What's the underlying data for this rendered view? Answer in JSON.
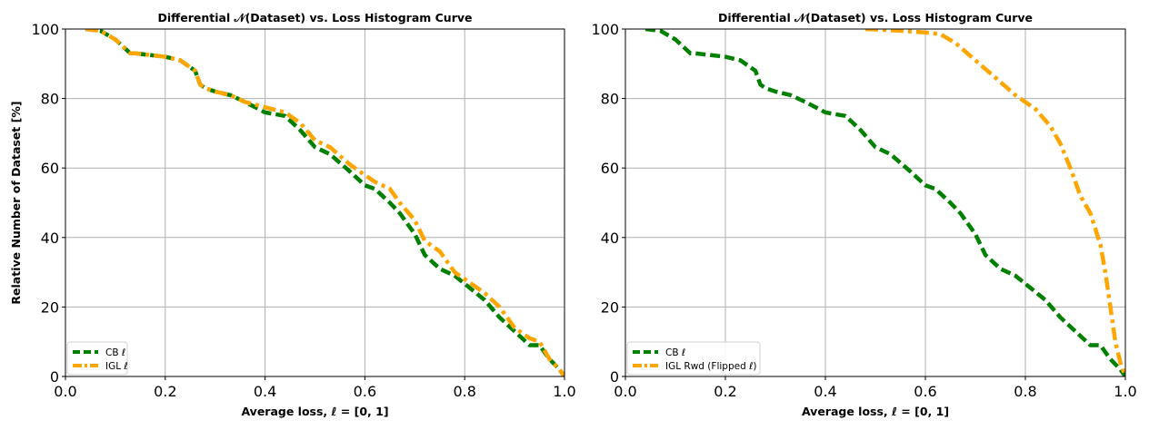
{
  "chart_data": [
    {
      "type": "line",
      "title": "Differential 𝒩(Dataset) vs. Loss Histogram Curve",
      "xlabel": "Average loss,  ℓ = [0, 1]",
      "ylabel": "Relative Number of Dataset [%]",
      "xlim": [
        0,
        1
      ],
      "ylim": [
        0,
        100
      ],
      "xticks": [
        "0.0",
        "0.2",
        "0.4",
        "0.6",
        "0.8",
        "1.0"
      ],
      "yticks": [
        "0",
        "20",
        "40",
        "60",
        "80",
        "100"
      ],
      "grid": true,
      "legend_position": "lower-left",
      "series": [
        {
          "name": "CB ℓ",
          "color": "#008000",
          "style": "dashed",
          "x": [
            0.04,
            0.07,
            0.1,
            0.13,
            0.14,
            0.2,
            0.23,
            0.26,
            0.27,
            0.28,
            0.3,
            0.33,
            0.36,
            0.4,
            0.44,
            0.47,
            0.5,
            0.53,
            0.57,
            0.6,
            0.62,
            0.65,
            0.67,
            0.7,
            0.72,
            0.75,
            0.78,
            0.81,
            0.84,
            0.87,
            0.9,
            0.93,
            0.95,
            0.97,
            0.99,
            1.0
          ],
          "y": [
            100,
            99.5,
            97,
            93,
            93,
            92,
            91,
            88,
            84,
            83,
            82,
            81,
            79,
            76,
            75,
            71,
            66,
            64,
            59,
            55,
            54,
            50,
            47,
            41,
            35,
            31,
            29,
            25.5,
            22,
            17,
            13,
            9,
            9,
            5,
            2,
            0
          ]
        },
        {
          "name": "IGL ℓ",
          "color": "#FFA500",
          "style": "dashdot",
          "x": [
            0.04,
            0.07,
            0.1,
            0.13,
            0.14,
            0.2,
            0.23,
            0.26,
            0.27,
            0.28,
            0.3,
            0.33,
            0.36,
            0.4,
            0.44,
            0.47,
            0.5,
            0.53,
            0.57,
            0.6,
            0.62,
            0.65,
            0.67,
            0.7,
            0.72,
            0.75,
            0.78,
            0.81,
            0.84,
            0.87,
            0.9,
            0.93,
            0.95,
            0.97,
            0.99,
            1.0
          ],
          "y": [
            100,
            99.5,
            97,
            93,
            93,
            92,
            91,
            88,
            84,
            83,
            82,
            81,
            79,
            77.5,
            76,
            73,
            68,
            66,
            61,
            58,
            56,
            54,
            50,
            45,
            39,
            36,
            30,
            27,
            24,
            20,
            14,
            11,
            10,
            5,
            2,
            0
          ]
        }
      ]
    },
    {
      "type": "line",
      "title": "Differential 𝒩(Dataset) vs. Loss Histogram Curve",
      "xlabel": "Average loss,  ℓ = [0, 1]",
      "ylabel": "",
      "xlim": [
        0,
        1
      ],
      "ylim": [
        0,
        100
      ],
      "xticks": [
        "0.0",
        "0.2",
        "0.4",
        "0.6",
        "0.8",
        "1.0"
      ],
      "yticks": [
        "0",
        "20",
        "40",
        "60",
        "80",
        "100"
      ],
      "grid": true,
      "legend_position": "lower-left",
      "series": [
        {
          "name": "CB ℓ",
          "color": "#008000",
          "style": "dashed",
          "x": [
            0.04,
            0.07,
            0.1,
            0.13,
            0.14,
            0.2,
            0.23,
            0.26,
            0.27,
            0.28,
            0.3,
            0.33,
            0.36,
            0.4,
            0.44,
            0.47,
            0.5,
            0.53,
            0.57,
            0.6,
            0.62,
            0.65,
            0.67,
            0.7,
            0.72,
            0.75,
            0.78,
            0.81,
            0.84,
            0.87,
            0.9,
            0.93,
            0.95,
            0.97,
            0.99,
            1.0
          ],
          "y": [
            100,
            99.5,
            97,
            93,
            93,
            92,
            91,
            88,
            84,
            83,
            82,
            81,
            79,
            76,
            75,
            71,
            66,
            64,
            59,
            55,
            54,
            50,
            47,
            41,
            35,
            31,
            29,
            25.5,
            22,
            17,
            13,
            9,
            9,
            5,
            2,
            0
          ]
        },
        {
          "name": "IGL Rwd (Flipped ℓ)",
          "color": "#FFA500",
          "style": "dashdot",
          "x": [
            0.48,
            0.55,
            0.6,
            0.63,
            0.66,
            0.7,
            0.74,
            0.78,
            0.82,
            0.85,
            0.87,
            0.89,
            0.91,
            0.93,
            0.95,
            0.96,
            0.97,
            0.98,
            0.99,
            1.0
          ],
          "y": [
            100,
            99.5,
            99,
            98.5,
            96,
            91,
            86,
            81,
            77,
            72,
            67,
            60,
            52,
            47,
            38,
            30,
            20,
            10,
            4,
            0
          ]
        }
      ]
    }
  ]
}
